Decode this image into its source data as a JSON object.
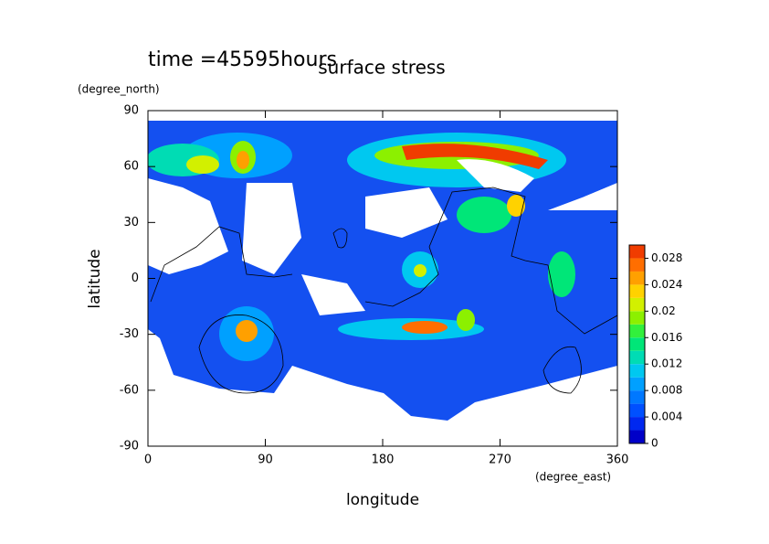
{
  "chart_data": {
    "type": "contour",
    "subtitle": "time =45595hours",
    "title": "surface stress",
    "x_label": "longitude",
    "y_label": "latitude",
    "x_unit": "(degree_east)",
    "y_unit": "(degree_north)",
    "xlim": [
      0,
      360
    ],
    "ylim": [
      -90,
      90
    ],
    "xticks": [
      0,
      90,
      180,
      270,
      360
    ],
    "yticks": [
      90,
      60,
      30,
      0,
      -30,
      -60,
      -90
    ],
    "colorbar": {
      "lim": [
        0,
        0.03
      ],
      "ticks": [
        0,
        0.004,
        0.008,
        0.012,
        0.016,
        0.02,
        0.024,
        0.028
      ],
      "colors": [
        "#0000c8",
        "#0028f0",
        "#0050ff",
        "#0078ff",
        "#00a0ff",
        "#00c8f0",
        "#00dcb4",
        "#00e678",
        "#32f03c",
        "#8cf000",
        "#d2f000",
        "#ffd200",
        "#ffa000",
        "#ff6e00",
        "#f03c00"
      ]
    }
  }
}
